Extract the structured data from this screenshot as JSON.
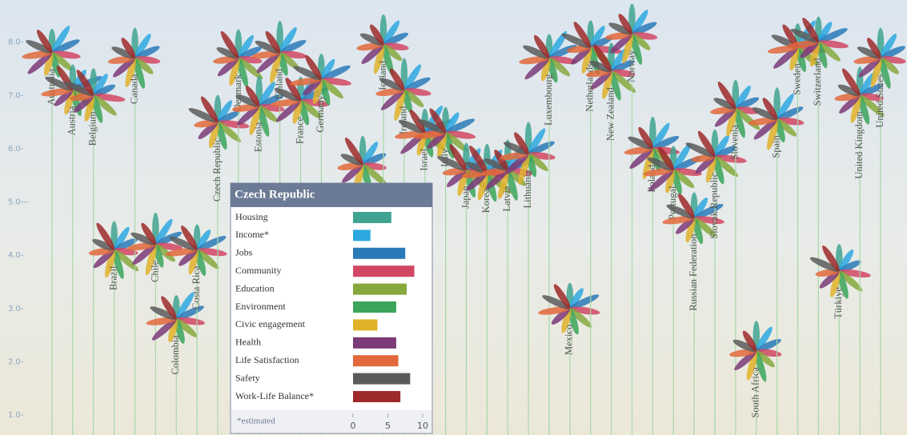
{
  "chart_data": {
    "type": "flower",
    "ylim": [
      0.7,
      8.7
    ],
    "yticks": [
      {
        "value": 1,
        "label": "1.0-"
      },
      {
        "value": 2,
        "label": "2.0-"
      },
      {
        "value": 3,
        "label": "3.0-"
      },
      {
        "value": 4,
        "label": "4.0-"
      },
      {
        "value": 5,
        "label": "5.0—"
      },
      {
        "value": 6,
        "label": "6.0-"
      },
      {
        "value": 7,
        "label": "7.0-"
      },
      {
        "value": 8,
        "label": "8.0-"
      }
    ],
    "categories": [
      "Australia",
      "Austria",
      "Belgium",
      "Brazil",
      "Canada",
      "Chile",
      "Colombia",
      "Costa Rica",
      "Czech Republic",
      "Denmark",
      "Estonia",
      "Finland",
      "France",
      "Germany",
      null,
      null,
      "Iceland",
      "Ireland",
      "Israel",
      "Italy",
      "Japan",
      "Korea",
      "Latvia",
      "Lithuania",
      "Luxembourg",
      "Mexico",
      "Netherlands",
      "New Zealand",
      "Norway",
      "Poland",
      "Portugal",
      "Russian Federation",
      "Slovak Republic",
      "Slovenia",
      "South Africa",
      "Spain",
      "Sweden",
      "Switzerland",
      "Türkiye",
      "United Kingdom",
      "United States"
    ],
    "values": [
      7.8,
      7.1,
      7.0,
      4.1,
      7.7,
      4.2,
      2.8,
      4.1,
      6.5,
      7.7,
      6.8,
      7.8,
      6.9,
      7.3,
      null,
      5.7,
      7.95,
      7.1,
      6.3,
      6.3,
      5.6,
      5.55,
      5.6,
      5.9,
      7.7,
      3.0,
      7.9,
      7.45,
      8.15,
      6.0,
      5.6,
      4.7,
      5.85,
      6.75,
      2.2,
      6.55,
      7.9,
      8.0,
      3.7,
      7.0,
      7.7
    ],
    "stem_color": "#a8d8a8",
    "tooltip": {
      "title": "Czech Republic",
      "categories": [
        "Housing",
        "Income*",
        "Jobs",
        "Community",
        "Education",
        "Environment",
        "Civic engagement",
        "Health",
        "Life Satisfaction",
        "Safety",
        "Work-Life Balance*"
      ],
      "values": [
        5.5,
        2.5,
        7.5,
        8.8,
        7.7,
        6.2,
        3.5,
        6.2,
        6.5,
        8.2,
        6.8
      ],
      "colors": [
        "#3fa391",
        "#2ea8e0",
        "#2a7ab8",
        "#d14763",
        "#86a83c",
        "#3aa55b",
        "#e0b22a",
        "#7b3a78",
        "#e2693b",
        "#5a5a5a",
        "#9e2a2a"
      ],
      "xlim": [
        0,
        10
      ],
      "xticks": [
        0,
        5,
        10
      ],
      "note": "*estimated"
    }
  }
}
